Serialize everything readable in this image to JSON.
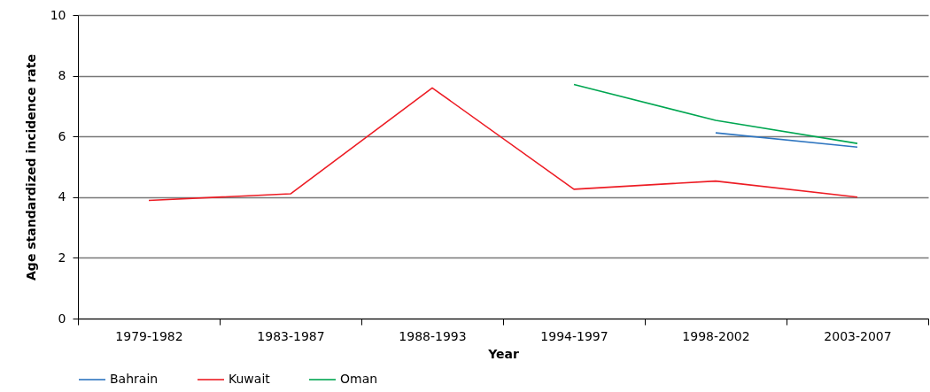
{
  "chart_data": {
    "type": "line",
    "xlabel": "Year",
    "ylabel": "Age standardized incidence rate",
    "categories": [
      "1979-1982",
      "1983-1987",
      "1988-1993",
      "1994-1997",
      "1998-2002",
      "2003-2007"
    ],
    "series": [
      {
        "name": "Bahrain",
        "color": "#2e75c0",
        "values": [
          null,
          null,
          null,
          null,
          6.12,
          5.65
        ]
      },
      {
        "name": "Kuwait",
        "color": "#ed1c24",
        "values": [
          3.89,
          4.11,
          7.6,
          4.26,
          4.53,
          4.0
        ]
      },
      {
        "name": "Oman",
        "color": "#00a651",
        "values": [
          null,
          null,
          null,
          7.71,
          6.53,
          5.77
        ]
      }
    ],
    "ylim": [
      0,
      10
    ],
    "yticks": [
      0,
      2,
      4,
      6,
      8,
      10
    ],
    "grid": "y",
    "legend": "bottom",
    "marker": "none",
    "line_style": "solid"
  }
}
